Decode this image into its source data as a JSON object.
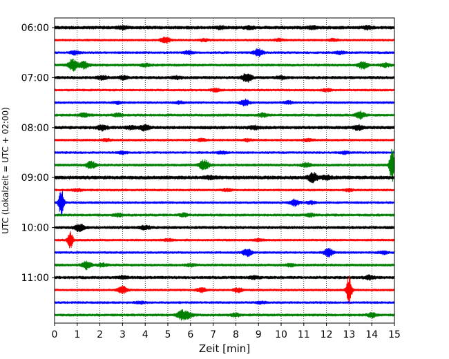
{
  "chart_data": {
    "type": "line",
    "title": "",
    "xlabel": "Zeit  [min]",
    "ylabel": "UTC (Lokalzeit = UTC + 02:00)",
    "xlim": [
      0,
      15
    ],
    "x_ticks": [
      0,
      1,
      2,
      3,
      4,
      5,
      6,
      7,
      8,
      9,
      10,
      11,
      12,
      13,
      14,
      15
    ],
    "y_tick_labels": [
      "06:00",
      "07:00",
      "08:00",
      "09:00",
      "10:00",
      "11:00"
    ],
    "grid": "vertical dotted lines at each minute",
    "row_interval_minutes": 15,
    "row_start_times": [
      "06:00",
      "06:15",
      "06:30",
      "06:45",
      "07:00",
      "07:15",
      "07:30",
      "07:45",
      "08:00",
      "08:15",
      "08:30",
      "08:45",
      "09:00",
      "09:15",
      "09:30",
      "09:45",
      "10:00",
      "10:15",
      "10:30",
      "10:45",
      "11:00",
      "11:15",
      "11:30",
      "11:45"
    ],
    "row_colors": [
      "#000000",
      "#ff0000",
      "#0000ff",
      "#008000"
    ],
    "relative_noise_level": [
      1.0,
      0.7,
      0.7,
      0.8,
      0.9,
      0.7,
      0.7,
      0.8,
      1.0,
      0.7,
      0.7,
      0.8,
      1.1,
      0.7,
      0.7,
      0.8,
      0.9,
      0.7,
      0.7,
      0.8,
      0.9,
      0.7,
      0.7,
      0.8
    ],
    "events": [
      [
        [
          3.0,
          0.5
        ],
        [
          7.3,
          0.4
        ],
        [
          8.6,
          0.4
        ],
        [
          11.4,
          0.4
        ],
        [
          13.8,
          0.5
        ]
      ],
      [
        [
          4.9,
          1.0
        ],
        [
          6.6,
          0.4
        ],
        [
          9.9,
          0.4
        ],
        [
          12.3,
          0.4
        ]
      ],
      [
        [
          0.9,
          0.6
        ],
        [
          5.9,
          0.5
        ],
        [
          9.0,
          1.3
        ],
        [
          12.6,
          0.5
        ]
      ],
      [
        [
          0.8,
          2.0
        ],
        [
          1.3,
          1.2
        ],
        [
          4.0,
          0.5
        ],
        [
          13.6,
          1.2
        ],
        [
          14.6,
          0.6
        ]
      ],
      [
        [
          2.1,
          0.6
        ],
        [
          3.0,
          0.5
        ],
        [
          5.4,
          0.4
        ],
        [
          8.5,
          1.5
        ],
        [
          10.0,
          0.5
        ]
      ],
      [
        [
          7.1,
          0.5
        ],
        [
          12.0,
          0.4
        ]
      ],
      [
        [
          2.8,
          0.4
        ],
        [
          5.5,
          0.4
        ],
        [
          8.4,
          1.0
        ],
        [
          10.3,
          0.5
        ]
      ],
      [
        [
          1.3,
          0.6
        ],
        [
          2.8,
          0.5
        ],
        [
          9.2,
          0.6
        ],
        [
          13.5,
          1.2
        ]
      ],
      [
        [
          2.1,
          0.8
        ],
        [
          3.4,
          0.6
        ],
        [
          4.0,
          1.0
        ],
        [
          8.8,
          0.5
        ],
        [
          13.4,
          0.7
        ]
      ],
      [
        [
          2.3,
          0.4
        ],
        [
          6.5,
          0.4
        ],
        [
          8.5,
          0.4
        ],
        [
          11.2,
          0.4
        ]
      ],
      [
        [
          3.0,
          0.4
        ],
        [
          7.4,
          0.4
        ],
        [
          12.8,
          0.4
        ]
      ],
      [
        [
          1.6,
          1.3
        ],
        [
          6.6,
          1.8
        ],
        [
          11.1,
          0.7
        ],
        [
          14.9,
          6.0
        ]
      ],
      [
        [
          6.9,
          0.5
        ],
        [
          11.4,
          1.5
        ],
        [
          12.0,
          0.6
        ]
      ],
      [
        [
          1.0,
          0.4
        ],
        [
          7.6,
          0.4
        ],
        [
          13.0,
          0.4
        ]
      ],
      [
        [
          0.3,
          5.0
        ],
        [
          10.6,
          1.1
        ],
        [
          11.3,
          0.5
        ]
      ],
      [
        [
          2.8,
          0.5
        ],
        [
          5.7,
          0.5
        ],
        [
          11.3,
          0.5
        ]
      ],
      [
        [
          1.1,
          1.2
        ],
        [
          4.0,
          0.6
        ]
      ],
      [
        [
          0.7,
          3.0
        ],
        [
          5.0,
          0.4
        ],
        [
          9.0,
          0.4
        ]
      ],
      [
        [
          8.5,
          1.3
        ],
        [
          12.1,
          1.4
        ],
        [
          14.5,
          0.5
        ]
      ],
      [
        [
          1.4,
          1.4
        ],
        [
          2.1,
          0.5
        ],
        [
          6.0,
          0.4
        ],
        [
          10.4,
          0.4
        ]
      ],
      [
        [
          3.0,
          0.4
        ],
        [
          8.8,
          0.4
        ],
        [
          13.9,
          0.6
        ]
      ],
      [
        [
          3.0,
          1.2
        ],
        [
          6.5,
          0.8
        ],
        [
          8.1,
          0.7
        ],
        [
          13.0,
          5.0
        ]
      ],
      [
        [
          3.8,
          0.4
        ],
        [
          9.1,
          0.4
        ]
      ],
      [
        [
          5.6,
          1.5
        ],
        [
          5.9,
          1.0
        ],
        [
          8.0,
          0.5
        ],
        [
          14.0,
          0.8
        ]
      ]
    ]
  }
}
